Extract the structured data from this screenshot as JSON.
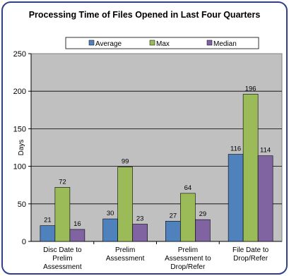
{
  "chart_data": {
    "type": "bar",
    "title": "Processing Time of Files Opened in Last Four Quarters",
    "ylabel": "Days",
    "xlabel": "",
    "ylim": [
      0,
      250
    ],
    "yticks": [
      0,
      50,
      100,
      150,
      200,
      250
    ],
    "grid": true,
    "legend_position": "top",
    "categories": [
      [
        "Disc Date to",
        "Prelim",
        "Assessment"
      ],
      [
        "Prelim",
        "Assessment"
      ],
      [
        "Prelim",
        "Assessment to",
        "Drop/Refer"
      ],
      [
        "File Date to",
        "Drop/Refer"
      ]
    ],
    "series": [
      {
        "name": "Average",
        "color": "#4f81bd",
        "values": [
          21,
          30,
          27,
          116
        ]
      },
      {
        "name": "Max",
        "color": "#9bbb59",
        "values": [
          72,
          99,
          64,
          196
        ]
      },
      {
        "name": "Median",
        "color": "#8064a2",
        "values": [
          16,
          23,
          29,
          114
        ]
      }
    ]
  },
  "colors": {
    "border": "#2e3f8f",
    "plot_background": "#c0c0c0",
    "gridline": "#000000"
  }
}
